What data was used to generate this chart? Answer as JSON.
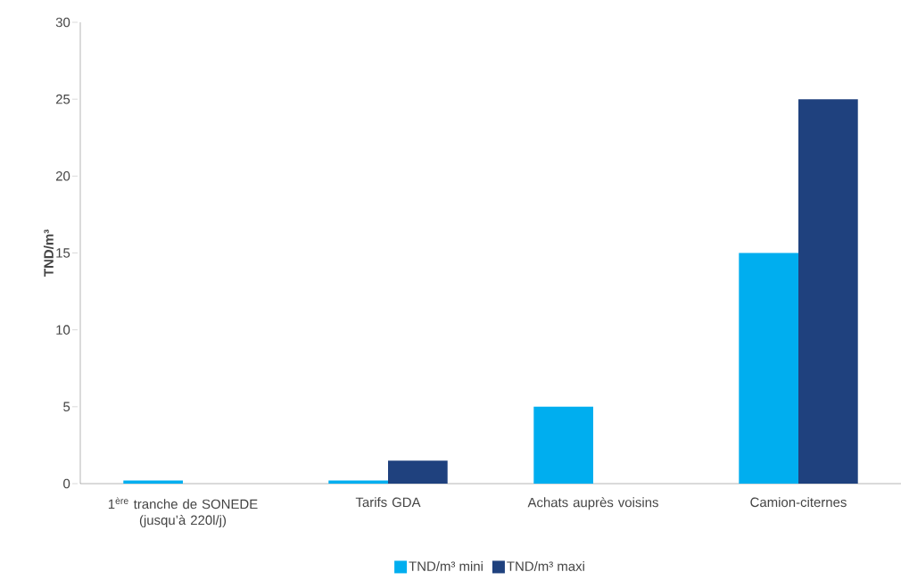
{
  "chart_data": {
    "type": "bar",
    "ylabel": "TND/m³",
    "categories": [
      "1$^{ère}$ tranche de SONEDE (jusqu’à 220l/j)",
      "Tarifs GDA",
      "Achats auprès voisins",
      "Camion-citernes"
    ],
    "series": [
      {
        "name": "TND/m³ mini",
        "color": "#00aeef",
        "values": [
          0.2,
          0.2,
          5,
          15
        ]
      },
      {
        "name": "TND/m³ maxi",
        "color": "#1f417e",
        "values": [
          null,
          1.5,
          null,
          25
        ]
      }
    ],
    "ylim": [
      0,
      30
    ],
    "yticks": [
      0,
      5,
      10,
      15,
      20,
      25,
      30
    ],
    "grid": false,
    "legend": "bottom"
  }
}
